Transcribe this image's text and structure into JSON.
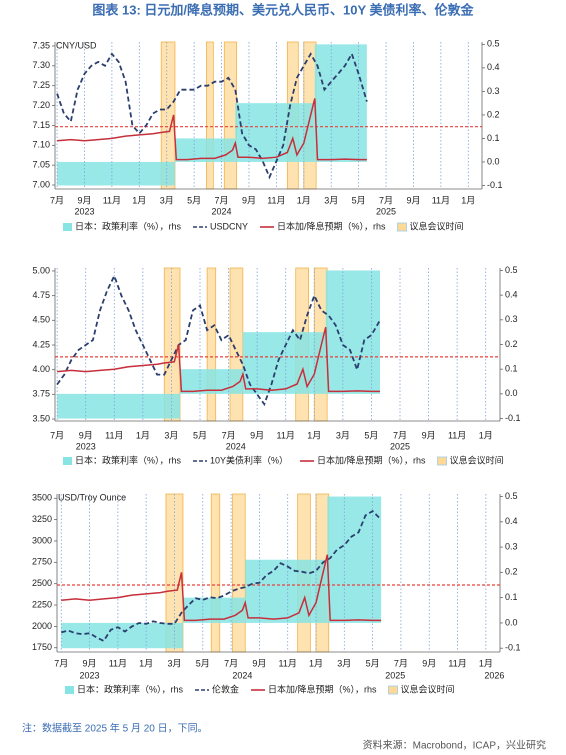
{
  "title": "图表 13: 日元加/降息预期、美元兑人民币、10Y 美债利率、伦敦金",
  "note": "注：数据截至 2025 年 5 月 20 日，下同。",
  "source": "资料来源：Macrobond，ICAP，兴业研究",
  "chart_data": [
    {
      "type": "combo",
      "unit_label": "CNY/USD",
      "xlim": [
        -0.15,
        31
      ],
      "xticks": [
        {
          "value": 0,
          "label": "7月"
        },
        {
          "value": 2,
          "label": "9月"
        },
        {
          "value": 4,
          "label": "11月"
        },
        {
          "value": 6,
          "label": "1月"
        },
        {
          "value": 8,
          "label": "3月"
        },
        {
          "value": 10,
          "label": "5月"
        },
        {
          "value": 12,
          "label": "7月"
        },
        {
          "value": 14,
          "label": "9月"
        },
        {
          "value": 16,
          "label": "11月"
        },
        {
          "value": 18,
          "label": "1月"
        },
        {
          "value": 20,
          "label": "3月"
        },
        {
          "value": 22,
          "label": "5月"
        },
        {
          "value": 24,
          "label": "7月"
        },
        {
          "value": 26,
          "label": "9月"
        },
        {
          "value": 28,
          "label": "11月"
        },
        {
          "value": 30,
          "label": "1月"
        }
      ],
      "year_ticks": [
        {
          "value": 2,
          "label": "2023"
        },
        {
          "value": 12,
          "label": "2024"
        },
        {
          "value": 24,
          "label": "2025"
        }
      ],
      "ylim": [
        6.99,
        7.36
      ],
      "yticks": [
        {
          "value": 7,
          "label": "7.00"
        },
        7.05,
        {
          "value": 7.1,
          "label": "7.10"
        },
        7.15,
        {
          "value": 7.2,
          "label": "7.20"
        },
        7.25,
        {
          "value": 7.3,
          "label": "7.30"
        },
        7.35
      ],
      "y2lim": [
        -0.115,
        0.51
      ],
      "y2ticks": [
        -0.1,
        {
          "value": 0,
          "label": "0.0"
        },
        0.1,
        0.2,
        0.3,
        0.4,
        0.5
      ],
      "ref_line": {
        "value": 0.15,
        "axis": "y2",
        "color": "#e8413b"
      },
      "series": [
        {
          "name": "日本：政策利率（%），rhs",
          "kind": "step-area",
          "axis": "y2",
          "color": "#86e4e4",
          "bins": [
            0,
            8.6,
            13,
            18.8,
            22.6
          ],
          "values": [
            -0.1,
            0.1,
            0.25,
            0.5
          ]
        },
        {
          "name": "USDCNY",
          "kind": "line",
          "dash": true,
          "color": "#2c3e6e",
          "x": [
            0,
            0.5,
            1,
            1.5,
            2,
            2.5,
            3,
            3.5,
            4,
            4.5,
            5,
            5.5,
            6,
            6.5,
            7,
            7.5,
            8,
            8.5,
            9,
            9.5,
            10,
            10.5,
            11,
            11.5,
            12,
            12.5,
            13,
            13.5,
            14,
            14.5,
            15,
            15.5,
            16,
            16.5,
            17,
            17.5,
            18,
            18.5,
            19,
            19.5,
            20,
            20.5,
            21,
            21.5,
            22,
            22.6
          ],
          "values": [
            7.23,
            7.18,
            7.16,
            7.24,
            7.28,
            7.3,
            7.31,
            7.3,
            7.33,
            7.31,
            7.26,
            7.15,
            7.13,
            7.15,
            7.18,
            7.19,
            7.19,
            7.21,
            7.24,
            7.24,
            7.24,
            7.25,
            7.25,
            7.26,
            7.26,
            7.27,
            7.24,
            7.13,
            7.1,
            7.09,
            7.06,
            7.02,
            7.06,
            7.1,
            7.2,
            7.27,
            7.3,
            7.33,
            7.3,
            7.24,
            7.26,
            7.28,
            7.3,
            7.33,
            7.28,
            7.21
          ]
        },
        {
          "name": "日本加/降息预期（%），rhs",
          "kind": "line",
          "axis": "y2",
          "color": "#c62f3c",
          "x": [
            0,
            1,
            2,
            3,
            4,
            5,
            6,
            7,
            7.5,
            8.2,
            8.5,
            8.7,
            9.5,
            10.5,
            11.5,
            12.3,
            12.8,
            13,
            13.2,
            14,
            15,
            16,
            16.8,
            17.2,
            17.5,
            18,
            18.5,
            18.8,
            19,
            20,
            21,
            22,
            22.6
          ],
          "values": [
            0.09,
            0.095,
            0.09,
            0.095,
            0.1,
            0.11,
            0.115,
            0.12,
            0.125,
            0.13,
            0.2,
            0.01,
            0.01,
            0.015,
            0.015,
            0.03,
            0.05,
            0.08,
            0.02,
            0.02,
            0.015,
            0.02,
            0.04,
            0.1,
            0.03,
            0.08,
            0.2,
            0.27,
            0.01,
            0.01,
            0.012,
            0.01,
            0.01
          ]
        },
        {
          "name": "议息会议时间",
          "kind": "bands",
          "color": "#fdd995",
          "values": [
            [
              7.6,
              8.6
            ],
            [
              10.9,
              11.4
            ],
            [
              12.2,
              13.1
            ],
            [
              16.8,
              17.6
            ],
            [
              18,
              18.9
            ]
          ]
        }
      ]
    },
    {
      "type": "combo",
      "xlim": [
        -0.15,
        31
      ],
      "xticks": [
        {
          "value": 0,
          "label": "7月"
        },
        {
          "value": 2,
          "label": "9月"
        },
        {
          "value": 4,
          "label": "11月"
        },
        {
          "value": 6,
          "label": "1月"
        },
        {
          "value": 8,
          "label": "3月"
        },
        {
          "value": 10,
          "label": "5月"
        },
        {
          "value": 12,
          "label": "7月"
        },
        {
          "value": 14,
          "label": "9月"
        },
        {
          "value": 16,
          "label": "11月"
        },
        {
          "value": 18,
          "label": "1月"
        },
        {
          "value": 20,
          "label": "3月"
        },
        {
          "value": 22,
          "label": "5月"
        },
        {
          "value": 24,
          "label": "7月"
        },
        {
          "value": 26,
          "label": "9月"
        },
        {
          "value": 28,
          "label": "11月"
        },
        {
          "value": 30,
          "label": "1月"
        }
      ],
      "year_ticks": [
        {
          "value": 2,
          "label": "2023"
        },
        {
          "value": 12.5,
          "label": "2024"
        },
        {
          "value": 24,
          "label": "2025"
        }
      ],
      "ylim": [
        3.48,
        5.03
      ],
      "yticks": [
        {
          "value": 3.5,
          "label": "3.50"
        },
        3.75,
        {
          "value": 4,
          "label": "4.00"
        },
        4.25,
        {
          "value": 4.5,
          "label": "4.50"
        },
        4.75,
        {
          "value": 5,
          "label": "5.00"
        }
      ],
      "y2lim": [
        -0.11,
        0.51
      ],
      "y2ticks": [
        -0.1,
        {
          "value": 0,
          "label": "0.0"
        },
        0.1,
        0.2,
        0.3,
        0.4,
        0.5
      ],
      "ref_line": {
        "value": 0.15,
        "axis": "y2",
        "color": "#e8413b"
      },
      "series": [
        {
          "name": "日本：政策利率（%），rhs",
          "kind": "step-area",
          "axis": "y2",
          "color": "#86e4e4",
          "bins": [
            0,
            8.6,
            13,
            18.8,
            22.6
          ],
          "values": [
            -0.1,
            0.1,
            0.25,
            0.5
          ]
        },
        {
          "name": "10Y美债利率（%）",
          "kind": "line",
          "dash": true,
          "color": "#2c3e6e",
          "x": [
            0,
            0.5,
            1,
            1.5,
            2,
            2.5,
            3,
            3.5,
            4,
            4.5,
            5,
            5.5,
            6,
            6.5,
            7,
            7.5,
            8,
            8.5,
            9,
            9.5,
            10,
            10.5,
            11,
            11.5,
            12,
            12.5,
            13,
            13.5,
            14,
            14.5,
            15,
            15.5,
            16,
            16.5,
            17,
            17.5,
            18,
            18.5,
            19,
            19.5,
            20,
            20.5,
            21,
            21.5,
            22,
            22.6
          ],
          "values": [
            3.85,
            3.95,
            4.1,
            4.2,
            4.25,
            4.3,
            4.6,
            4.8,
            4.95,
            4.75,
            4.6,
            4.4,
            4.25,
            4.1,
            3.95,
            3.95,
            4.1,
            4.25,
            4.3,
            4.6,
            4.65,
            4.4,
            4.45,
            4.3,
            4.35,
            4.2,
            4.05,
            3.85,
            3.75,
            3.65,
            3.85,
            4.1,
            4.25,
            4.4,
            4.3,
            4.55,
            4.75,
            4.6,
            4.55,
            4.45,
            4.25,
            4.2,
            4.0,
            4.3,
            4.35,
            4.5
          ]
        },
        {
          "name": "日本加/降息预期（%），rhs",
          "kind": "line",
          "axis": "y2",
          "color": "#c62f3c",
          "x": [
            0,
            1,
            2,
            3,
            4,
            5,
            6,
            7,
            7.5,
            8.2,
            8.5,
            8.7,
            9.5,
            10.5,
            11.5,
            12.3,
            12.8,
            13,
            13.2,
            14,
            15,
            16,
            16.8,
            17.2,
            17.5,
            18,
            18.5,
            18.8,
            19,
            20,
            21,
            22,
            22.6
          ],
          "values": [
            0.09,
            0.095,
            0.09,
            0.095,
            0.1,
            0.11,
            0.115,
            0.12,
            0.125,
            0.13,
            0.2,
            0.01,
            0.01,
            0.015,
            0.015,
            0.03,
            0.05,
            0.08,
            0.02,
            0.02,
            0.015,
            0.02,
            0.04,
            0.1,
            0.03,
            0.08,
            0.2,
            0.27,
            0.01,
            0.01,
            0.012,
            0.01,
            0.01
          ]
        },
        {
          "name": "议息会议时间",
          "kind": "bands",
          "color": "#fdd995",
          "values": [
            [
              7.5,
              8.6
            ],
            [
              10.5,
              11.1
            ],
            [
              12.1,
              13
            ],
            [
              16.7,
              17.6
            ],
            [
              18,
              18.9
            ]
          ]
        }
      ]
    },
    {
      "type": "combo",
      "unit_label": "USD/Troy Ounce",
      "xlim": [
        -0.3,
        31
      ],
      "xticks": [
        {
          "value": 0,
          "label": "7月"
        },
        {
          "value": 2,
          "label": "9月"
        },
        {
          "value": 4,
          "label": "11月"
        },
        {
          "value": 6,
          "label": "1月"
        },
        {
          "value": 8,
          "label": "3月"
        },
        {
          "value": 10,
          "label": "5月"
        },
        {
          "value": 12,
          "label": "7月"
        },
        {
          "value": 14,
          "label": "9月"
        },
        {
          "value": 16,
          "label": "11月"
        },
        {
          "value": 18,
          "label": "1月"
        },
        {
          "value": 20,
          "label": "3月"
        },
        {
          "value": 22,
          "label": "5月"
        },
        {
          "value": 24,
          "label": "7月"
        },
        {
          "value": 26,
          "label": "9月"
        },
        {
          "value": 28,
          "label": "11月"
        },
        {
          "value": 30,
          "label": "1月"
        }
      ],
      "year_ticks": [
        {
          "value": 2,
          "label": "2023"
        },
        {
          "value": 12.8,
          "label": "2024"
        },
        {
          "value": 23.6,
          "label": "2025"
        },
        {
          "value": 30.6,
          "label": "2026"
        }
      ],
      "ylim": [
        1700,
        3550
      ],
      "yticks": [
        1750,
        2000,
        2250,
        2500,
        2750,
        3000,
        3250,
        3500
      ],
      "y2lim": [
        -0.115,
        0.51
      ],
      "y2ticks": [
        -0.1,
        {
          "value": 0,
          "label": "0.0"
        },
        0.1,
        0.2,
        0.3,
        0.4,
        0.5
      ],
      "ref_line": {
        "value": 0.15,
        "axis": "y2",
        "color": "#e8413b"
      },
      "series": [
        {
          "name": "日本：政策利率（%），rhs",
          "kind": "step-area",
          "axis": "y2",
          "color": "#86e4e4",
          "bins": [
            0,
            8.6,
            13,
            18.8,
            22.6
          ],
          "values": [
            -0.1,
            0.1,
            0.25,
            0.5
          ]
        },
        {
          "name": "伦敦金",
          "kind": "line",
          "dash": true,
          "color": "#2c3e6e",
          "x": [
            0,
            0.5,
            1,
            1.5,
            2,
            2.5,
            3,
            3.5,
            4,
            4.5,
            5,
            5.5,
            6,
            6.5,
            7,
            7.5,
            8,
            8.5,
            9,
            9.5,
            10,
            10.5,
            11,
            11.5,
            12,
            12.5,
            13,
            13.5,
            14,
            14.5,
            15,
            15.5,
            16,
            16.5,
            17,
            17.5,
            18,
            18.5,
            19,
            19.5,
            20,
            20.5,
            21,
            21.5,
            22,
            22.6
          ],
          "values": [
            1930,
            1950,
            1920,
            1910,
            1920,
            1870,
            1830,
            1960,
            1990,
            1940,
            2000,
            2040,
            2030,
            2060,
            2040,
            2030,
            2030,
            2160,
            2250,
            2330,
            2310,
            2340,
            2330,
            2360,
            2410,
            2440,
            2460,
            2500,
            2510,
            2600,
            2650,
            2740,
            2700,
            2650,
            2640,
            2620,
            2650,
            2750,
            2800,
            2900,
            2950,
            3050,
            3100,
            3300,
            3350,
            3250
          ]
        },
        {
          "name": "日本加/降息预期（%），rhs",
          "kind": "line",
          "axis": "y2",
          "color": "#c62f3c",
          "x": [
            0,
            1,
            2,
            3,
            4,
            5,
            6,
            7,
            7.5,
            8.2,
            8.5,
            8.7,
            9.5,
            10.5,
            11.5,
            12.3,
            12.8,
            13,
            13.2,
            14,
            15,
            16,
            16.8,
            17.2,
            17.5,
            18,
            18.5,
            18.8,
            19,
            20,
            21,
            22,
            22.6
          ],
          "values": [
            0.09,
            0.095,
            0.09,
            0.095,
            0.1,
            0.11,
            0.115,
            0.12,
            0.125,
            0.13,
            0.2,
            0.01,
            0.01,
            0.015,
            0.015,
            0.03,
            0.05,
            0.08,
            0.02,
            0.02,
            0.015,
            0.02,
            0.04,
            0.1,
            0.03,
            0.08,
            0.2,
            0.27,
            0.01,
            0.01,
            0.012,
            0.01,
            0.01
          ]
        },
        {
          "name": "议息会议时间",
          "kind": "bands",
          "color": "#fdd995",
          "values": [
            [
              7.4,
              8.6
            ],
            [
              10.6,
              11.2
            ],
            [
              12.1,
              13
            ],
            [
              16.7,
              17.6
            ],
            [
              18,
              18.9
            ]
          ]
        }
      ]
    }
  ]
}
